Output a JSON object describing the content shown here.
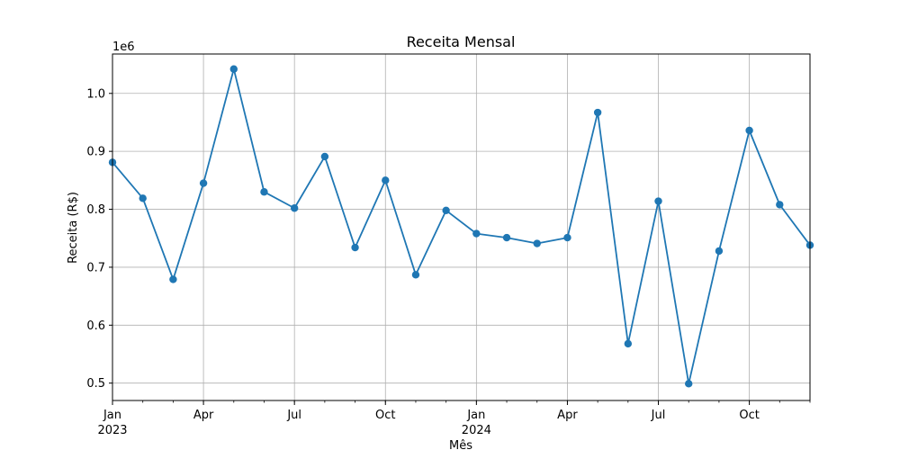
{
  "chart_data": {
    "type": "line",
    "title": "Receita Mensal",
    "xlabel": "Mês",
    "ylabel": "Receita (R$)",
    "y_offset_label": "1e6",
    "y_scale": 1000000,
    "ylim": [
      470000,
      1068000
    ],
    "grid": true,
    "line_color": "#1f77b4",
    "grid_color": "#b0b0b0",
    "x_major_ticks": [
      {
        "index": 0,
        "label": "Jan",
        "sublabel": "2023"
      },
      {
        "index": 3,
        "label": "Apr",
        "sublabel": ""
      },
      {
        "index": 6,
        "label": "Jul",
        "sublabel": ""
      },
      {
        "index": 9,
        "label": "Oct",
        "sublabel": ""
      },
      {
        "index": 12,
        "label": "Jan",
        "sublabel": "2024"
      },
      {
        "index": 15,
        "label": "Apr",
        "sublabel": ""
      },
      {
        "index": 18,
        "label": "Jul",
        "sublabel": ""
      },
      {
        "index": 21,
        "label": "Oct",
        "sublabel": ""
      }
    ],
    "y_ticks": [
      {
        "value": 500000,
        "label": "0.5"
      },
      {
        "value": 600000,
        "label": "0.6"
      },
      {
        "value": 700000,
        "label": "0.7"
      },
      {
        "value": 800000,
        "label": "0.8"
      },
      {
        "value": 900000,
        "label": "0.9"
      },
      {
        "value": 1000000,
        "label": "1.0"
      }
    ],
    "x": [
      "2023-01",
      "2023-02",
      "2023-03",
      "2023-04",
      "2023-05",
      "2023-06",
      "2023-07",
      "2023-08",
      "2023-09",
      "2023-10",
      "2023-11",
      "2023-12",
      "2024-01",
      "2024-02",
      "2024-03",
      "2024-04",
      "2024-05",
      "2024-06",
      "2024-07",
      "2024-08",
      "2024-09",
      "2024-10",
      "2024-11",
      "2024-12"
    ],
    "values": [
      881000,
      819000,
      679000,
      845000,
      1042000,
      830000,
      802000,
      891000,
      734000,
      850000,
      687000,
      798000,
      758000,
      751000,
      741000,
      751000,
      967000,
      568000,
      814000,
      499000,
      728000,
      936000,
      808000,
      738000
    ]
  }
}
